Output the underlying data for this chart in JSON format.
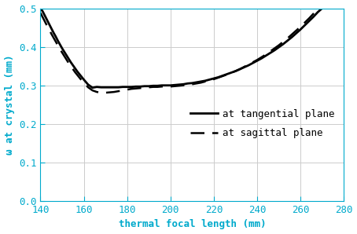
{
  "xlabel": "thermal focal length (mm)",
  "ylabel": "ω at crystal (mm)",
  "xlim": [
    140,
    280
  ],
  "ylim": [
    0.0,
    0.5
  ],
  "xticks": [
    140,
    160,
    180,
    200,
    220,
    240,
    260,
    280
  ],
  "yticks": [
    0.0,
    0.1,
    0.2,
    0.3,
    0.4,
    0.5
  ],
  "legend_labels": [
    "at tangential plane",
    "at sagittal plane"
  ],
  "line_color": "#000000",
  "axis_color": "#00aacc",
  "grid_color": "#cccccc",
  "background_color": "#ffffff",
  "tangential_x": [
    140,
    141,
    142,
    143,
    144,
    145,
    146,
    147,
    148,
    149,
    150,
    151,
    152,
    153,
    154,
    155,
    156,
    157,
    158,
    159,
    160,
    162,
    164,
    166,
    168,
    170,
    172,
    174,
    176,
    178,
    180,
    182,
    184,
    186,
    188,
    190,
    192,
    194,
    196,
    198,
    200,
    202,
    204,
    206,
    208,
    210,
    212,
    214,
    216,
    218,
    220,
    222,
    224,
    226,
    228,
    230,
    232,
    234,
    236,
    238,
    240,
    242,
    244,
    246,
    248,
    250,
    252,
    254,
    256,
    258,
    260,
    262,
    264,
    266,
    268,
    270
  ],
  "tangential_y": [
    0.5,
    0.492,
    0.481,
    0.47,
    0.459,
    0.448,
    0.437,
    0.427,
    0.416,
    0.406,
    0.396,
    0.387,
    0.378,
    0.369,
    0.36,
    0.352,
    0.344,
    0.336,
    0.329,
    0.322,
    0.315,
    0.302,
    0.294,
    0.296,
    0.295,
    0.295,
    0.295,
    0.295,
    0.295,
    0.296,
    0.296,
    0.296,
    0.297,
    0.297,
    0.298,
    0.298,
    0.299,
    0.299,
    0.3,
    0.3,
    0.3,
    0.301,
    0.302,
    0.303,
    0.305,
    0.306,
    0.308,
    0.31,
    0.312,
    0.315,
    0.318,
    0.321,
    0.325,
    0.329,
    0.333,
    0.337,
    0.342,
    0.347,
    0.352,
    0.358,
    0.364,
    0.37,
    0.377,
    0.384,
    0.391,
    0.399,
    0.407,
    0.416,
    0.425,
    0.435,
    0.445,
    0.456,
    0.467,
    0.478,
    0.49,
    0.5
  ],
  "sagittal_x": [
    140,
    141,
    142,
    143,
    144,
    145,
    146,
    147,
    148,
    149,
    150,
    151,
    152,
    153,
    154,
    155,
    156,
    157,
    158,
    159,
    160,
    162,
    164,
    166,
    168,
    170,
    172,
    174,
    176,
    178,
    180,
    182,
    184,
    186,
    188,
    190,
    192,
    194,
    196,
    198,
    200,
    202,
    204,
    206,
    208,
    210,
    212,
    214,
    216,
    218,
    220,
    222,
    224,
    226,
    228,
    230,
    232,
    234,
    236,
    238,
    240,
    242,
    244,
    246,
    248,
    250,
    252,
    254,
    256,
    258,
    260,
    262,
    264,
    266,
    268,
    270
  ],
  "sagittal_y": [
    0.488,
    0.477,
    0.466,
    0.455,
    0.445,
    0.434,
    0.424,
    0.414,
    0.404,
    0.394,
    0.385,
    0.376,
    0.367,
    0.358,
    0.35,
    0.342,
    0.334,
    0.327,
    0.32,
    0.313,
    0.307,
    0.295,
    0.287,
    0.283,
    0.281,
    0.281,
    0.282,
    0.283,
    0.285,
    0.287,
    0.289,
    0.291,
    0.292,
    0.293,
    0.294,
    0.295,
    0.296,
    0.296,
    0.297,
    0.297,
    0.297,
    0.298,
    0.299,
    0.3,
    0.301,
    0.303,
    0.305,
    0.307,
    0.31,
    0.313,
    0.316,
    0.32,
    0.324,
    0.328,
    0.333,
    0.337,
    0.342,
    0.348,
    0.354,
    0.36,
    0.366,
    0.373,
    0.38,
    0.388,
    0.396,
    0.404,
    0.413,
    0.422,
    0.432,
    0.442,
    0.452,
    0.463,
    0.474,
    0.486,
    0.498,
    0.5
  ]
}
